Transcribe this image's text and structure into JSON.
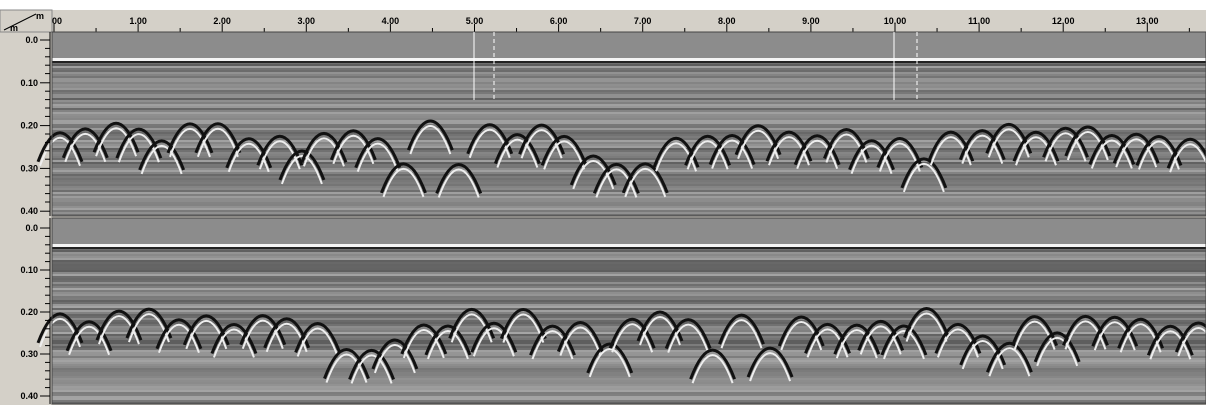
{
  "ruler": {
    "x_unit": "m",
    "y_unit": "m",
    "x_labels": [
      "00",
      "1.00",
      "2.00",
      "3.00",
      "4.00",
      "5.00",
      "6.00",
      "7.00",
      "8.00",
      "9.00",
      "10.00",
      "11.00",
      "12.00",
      "13.00"
    ]
  },
  "panels": [
    {
      "depth_labels": [
        "0.0",
        "0.10",
        "0.20",
        "0.30",
        "0.40"
      ]
    },
    {
      "depth_labels": [
        "0.0",
        "0.10",
        "0.20",
        "0.30",
        "0.40"
      ]
    }
  ]
}
